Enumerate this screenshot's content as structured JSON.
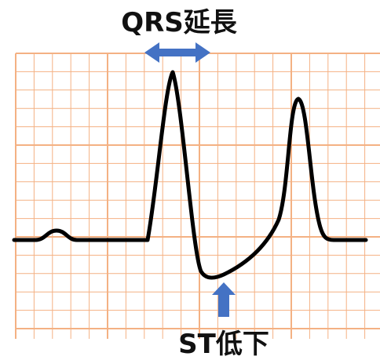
{
  "annotations": {
    "qrs": "QRS延長",
    "st": "ST低下"
  }
}
